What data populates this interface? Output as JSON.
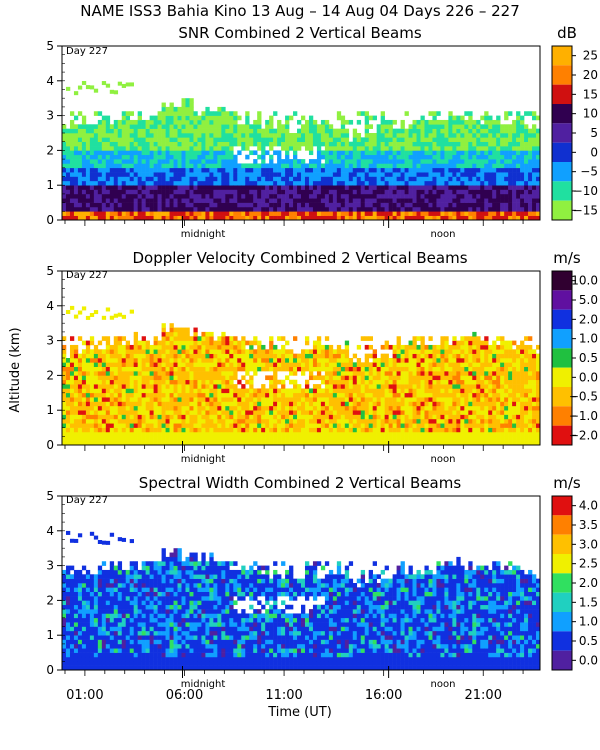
{
  "figure_title": "NAME ISS3 Bahia Kino  13 Aug – 14 Aug 04 Days 226 – 227",
  "shared_ylabel": "Altitude (km)",
  "shared_xlabel": "Time (UT)",
  "x_ticks": [
    "01:00",
    "06:00",
    "11:00",
    "16:00",
    "21:00"
  ],
  "markers": [
    "midnight",
    "noon"
  ],
  "day_label": "Day 227",
  "chart_data": [
    {
      "type": "heatmap",
      "title": "SNR Combined 2 Vertical Beams",
      "unit": "dB",
      "y_ticks": [
        "0",
        "1",
        "2",
        "3",
        "4",
        "5"
      ],
      "ylim": [
        0,
        5
      ],
      "colorbar_labels": [
        "25",
        "20",
        "15",
        "10",
        "5",
        "0",
        "−5",
        "−10",
        "−15"
      ],
      "colorbar_colors": [
        "#ffb000",
        "#ff8000",
        "#d01010",
        "#300050",
        "#5020a0",
        "#1030d0",
        "#10a0ff",
        "#20e0a0",
        "#90f040"
      ]
    },
    {
      "type": "heatmap",
      "title": "Doppler Velocity Combined 2 Vertical Beams",
      "unit": "m/s",
      "y_ticks": [
        "0",
        "1",
        "2",
        "3",
        "4",
        "5"
      ],
      "ylim": [
        0,
        5
      ],
      "colorbar_labels": [
        "10.0",
        "5.0",
        "2.0",
        "1.0",
        "0.5",
        "0.0",
        "−0.5",
        "−1.0",
        "−2.0"
      ],
      "colorbar_colors": [
        "#300030",
        "#6010a0",
        "#1030e0",
        "#10a0ff",
        "#20c040",
        "#f0f000",
        "#ffc000",
        "#ff8000",
        "#e01010"
      ]
    },
    {
      "type": "heatmap",
      "title": "Spectral Width Combined 2 Vertical Beams",
      "unit": "m/s",
      "y_ticks": [
        "0",
        "1",
        "2",
        "3",
        "4",
        "5"
      ],
      "ylim": [
        0,
        5
      ],
      "colorbar_labels": [
        "4.0",
        "3.5",
        "3.0",
        "2.5",
        "2.0",
        "1.5",
        "1.0",
        "0.5",
        "0.0"
      ],
      "colorbar_colors": [
        "#e01010",
        "#ff8000",
        "#ffc000",
        "#f0f000",
        "#30e060",
        "#20d0c0",
        "#10a0ff",
        "#1030e0",
        "#5020a0"
      ]
    }
  ]
}
